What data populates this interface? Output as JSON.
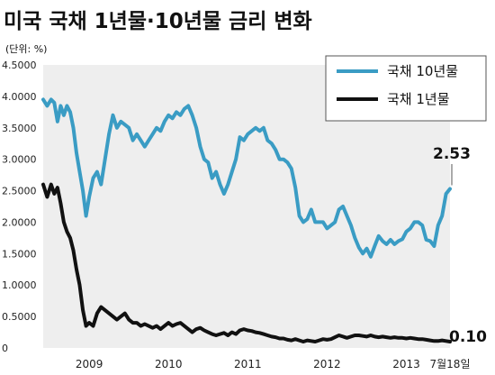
{
  "chart_data": {
    "type": "line",
    "title": "미국 국채 1년물·10년물 금리 변화",
    "unit_label": "(단위: %)",
    "ylim": [
      0,
      4.5
    ],
    "yticks": [
      "4.5000",
      "4.0000",
      "3.5000",
      "3.0000",
      "2.5000",
      "2.0000",
      "1.5000",
      "1.0000",
      "0.5000",
      "0"
    ],
    "ytick_values": [
      4.5,
      4.0,
      3.5,
      3.0,
      2.5,
      2.0,
      1.5,
      1.0,
      0.5,
      0
    ],
    "xlim": [
      2008.42,
      2013.55
    ],
    "xticks": [
      "2009",
      "2010",
      "2011",
      "2012",
      "2013",
      "7월18일"
    ],
    "xtick_values": [
      2009.0,
      2010.0,
      2011.0,
      2012.0,
      2013.0,
      2013.55
    ],
    "grid": false,
    "legend_position": "top-right",
    "colors": {
      "ten_year": "#3a9cc4",
      "one_year": "#111111",
      "fill": "#eeeeee"
    },
    "series": [
      {
        "name": "국채 10년물",
        "end_label": "2.53",
        "x": [
          2008.42,
          2008.47,
          2008.52,
          2008.56,
          2008.6,
          2008.64,
          2008.68,
          2008.72,
          2008.76,
          2008.8,
          2008.84,
          2008.88,
          2008.92,
          2008.96,
          2009.0,
          2009.05,
          2009.1,
          2009.15,
          2009.2,
          2009.25,
          2009.3,
          2009.35,
          2009.4,
          2009.45,
          2009.5,
          2009.55,
          2009.6,
          2009.65,
          2009.7,
          2009.75,
          2009.8,
          2009.85,
          2009.9,
          2009.95,
          2010.0,
          2010.05,
          2010.1,
          2010.15,
          2010.2,
          2010.25,
          2010.3,
          2010.35,
          2010.4,
          2010.45,
          2010.5,
          2010.55,
          2010.6,
          2010.65,
          2010.7,
          2010.75,
          2010.8,
          2010.85,
          2010.9,
          2010.95,
          2011.0,
          2011.05,
          2011.1,
          2011.15,
          2011.2,
          2011.25,
          2011.3,
          2011.35,
          2011.4,
          2011.45,
          2011.5,
          2011.55,
          2011.6,
          2011.65,
          2011.7,
          2011.75,
          2011.8,
          2011.85,
          2011.9,
          2011.95,
          2012.0,
          2012.05,
          2012.1,
          2012.15,
          2012.2,
          2012.25,
          2012.3,
          2012.35,
          2012.4,
          2012.45,
          2012.5,
          2012.55,
          2012.6,
          2012.65,
          2012.7,
          2012.75,
          2012.8,
          2012.85,
          2012.9,
          2012.95,
          2013.0,
          2013.05,
          2013.1,
          2013.15,
          2013.2,
          2013.25,
          2013.3,
          2013.35,
          2013.4,
          2013.45,
          2013.5,
          2013.55
        ],
        "values": [
          3.95,
          3.85,
          3.95,
          3.9,
          3.6,
          3.85,
          3.7,
          3.85,
          3.75,
          3.5,
          3.1,
          2.8,
          2.5,
          2.1,
          2.4,
          2.7,
          2.8,
          2.6,
          3.0,
          3.4,
          3.7,
          3.5,
          3.6,
          3.55,
          3.5,
          3.3,
          3.4,
          3.3,
          3.2,
          3.3,
          3.4,
          3.5,
          3.45,
          3.6,
          3.7,
          3.65,
          3.75,
          3.7,
          3.8,
          3.85,
          3.7,
          3.5,
          3.2,
          3.0,
          2.95,
          2.7,
          2.8,
          2.6,
          2.45,
          2.6,
          2.8,
          3.0,
          3.35,
          3.3,
          3.4,
          3.45,
          3.5,
          3.45,
          3.5,
          3.3,
          3.25,
          3.15,
          3.0,
          3.0,
          2.95,
          2.85,
          2.55,
          2.1,
          2.0,
          2.05,
          2.2,
          2.0,
          2.0,
          2.0,
          1.9,
          1.95,
          2.0,
          2.2,
          2.25,
          2.1,
          1.95,
          1.75,
          1.6,
          1.5,
          1.58,
          1.45,
          1.62,
          1.78,
          1.7,
          1.65,
          1.72,
          1.65,
          1.7,
          1.73,
          1.85,
          1.9,
          2.0,
          2.0,
          1.95,
          1.72,
          1.7,
          1.62,
          1.95,
          2.1,
          2.45,
          2.53
        ]
      },
      {
        "name": "국채 1년물",
        "end_label": "0.10",
        "x": [
          2008.42,
          2008.47,
          2008.52,
          2008.56,
          2008.6,
          2008.64,
          2008.68,
          2008.72,
          2008.76,
          2008.8,
          2008.84,
          2008.88,
          2008.92,
          2008.96,
          2009.0,
          2009.05,
          2009.1,
          2009.15,
          2009.2,
          2009.25,
          2009.3,
          2009.35,
          2009.4,
          2009.45,
          2009.5,
          2009.55,
          2009.6,
          2009.65,
          2009.7,
          2009.75,
          2009.8,
          2009.85,
          2009.9,
          2009.95,
          2010.0,
          2010.05,
          2010.1,
          2010.15,
          2010.2,
          2010.25,
          2010.3,
          2010.35,
          2010.4,
          2010.45,
          2010.5,
          2010.55,
          2010.6,
          2010.65,
          2010.7,
          2010.75,
          2010.8,
          2010.85,
          2010.9,
          2010.95,
          2011.0,
          2011.05,
          2011.1,
          2011.15,
          2011.2,
          2011.25,
          2011.3,
          2011.35,
          2011.4,
          2011.45,
          2011.5,
          2011.55,
          2011.6,
          2011.65,
          2011.7,
          2011.75,
          2011.8,
          2011.85,
          2011.9,
          2011.95,
          2012.0,
          2012.05,
          2012.1,
          2012.15,
          2012.2,
          2012.25,
          2012.3,
          2012.35,
          2012.4,
          2012.45,
          2012.5,
          2012.55,
          2012.6,
          2012.65,
          2012.7,
          2012.75,
          2012.8,
          2012.85,
          2012.9,
          2012.95,
          2013.0,
          2013.05,
          2013.1,
          2013.15,
          2013.2,
          2013.25,
          2013.3,
          2013.35,
          2013.4,
          2013.45,
          2013.5,
          2013.55
        ],
        "values": [
          2.6,
          2.4,
          2.6,
          2.45,
          2.55,
          2.3,
          2.0,
          1.85,
          1.75,
          1.55,
          1.25,
          1.0,
          0.6,
          0.35,
          0.4,
          0.35,
          0.55,
          0.65,
          0.6,
          0.55,
          0.5,
          0.45,
          0.5,
          0.55,
          0.45,
          0.4,
          0.4,
          0.35,
          0.38,
          0.35,
          0.32,
          0.35,
          0.3,
          0.35,
          0.4,
          0.35,
          0.38,
          0.4,
          0.35,
          0.3,
          0.25,
          0.3,
          0.32,
          0.28,
          0.25,
          0.22,
          0.2,
          0.22,
          0.24,
          0.2,
          0.25,
          0.22,
          0.28,
          0.3,
          0.28,
          0.27,
          0.25,
          0.24,
          0.22,
          0.2,
          0.18,
          0.17,
          0.15,
          0.15,
          0.13,
          0.12,
          0.14,
          0.12,
          0.1,
          0.12,
          0.11,
          0.1,
          0.12,
          0.14,
          0.13,
          0.14,
          0.17,
          0.2,
          0.18,
          0.16,
          0.18,
          0.2,
          0.2,
          0.19,
          0.18,
          0.2,
          0.18,
          0.17,
          0.18,
          0.17,
          0.16,
          0.17,
          0.16,
          0.16,
          0.15,
          0.16,
          0.15,
          0.14,
          0.14,
          0.13,
          0.12,
          0.11,
          0.11,
          0.12,
          0.11,
          0.1
        ]
      }
    ]
  }
}
